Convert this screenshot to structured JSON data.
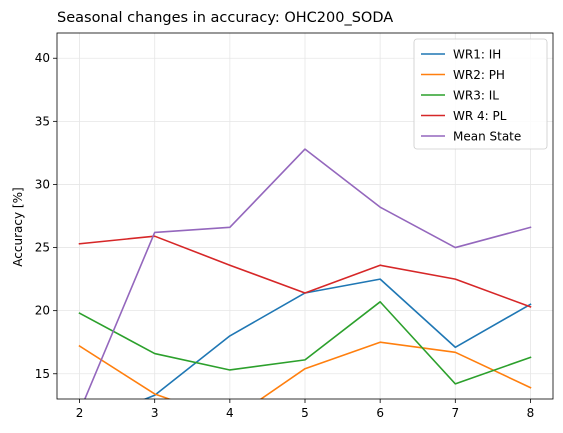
{
  "chart_data": {
    "type": "line",
    "title": "Seasonal changes in accuracy: OHC200_SODA",
    "xlabel": "",
    "ylabel": "Accuracy [%]",
    "x": [
      2,
      3,
      4,
      5,
      6,
      7,
      8
    ],
    "xlim": [
      1.7,
      8.3
    ],
    "ylim": [
      13.0,
      42.0
    ],
    "xticks": [
      "2",
      "3",
      "4",
      "5",
      "6",
      "7",
      "8"
    ],
    "yticks": [
      "15",
      "20",
      "25",
      "30",
      "35",
      "40"
    ],
    "grid": true,
    "legend_position": "top-right",
    "series": [
      {
        "name": "WR1: IH",
        "color": "#1f77b4",
        "values": [
          10.9,
          13.3,
          18.0,
          21.4,
          22.5,
          17.1,
          20.5
        ]
      },
      {
        "name": "WR2: PH",
        "color": "#ff7f0e",
        "values": [
          17.2,
          13.4,
          11.3,
          15.4,
          17.5,
          16.7,
          13.9
        ]
      },
      {
        "name": "WR3: IL",
        "color": "#2ca02c",
        "values": [
          19.8,
          16.6,
          15.3,
          16.1,
          20.7,
          14.2,
          16.3
        ]
      },
      {
        "name": "WR 4: PL",
        "color": "#d62728",
        "values": [
          25.3,
          25.9,
          23.6,
          21.4,
          23.6,
          22.5,
          20.3
        ]
      },
      {
        "name": "Mean State",
        "color": "#9467bd",
        "values": [
          12.0,
          26.2,
          26.6,
          32.8,
          28.2,
          25.0,
          26.6
        ]
      }
    ]
  }
}
